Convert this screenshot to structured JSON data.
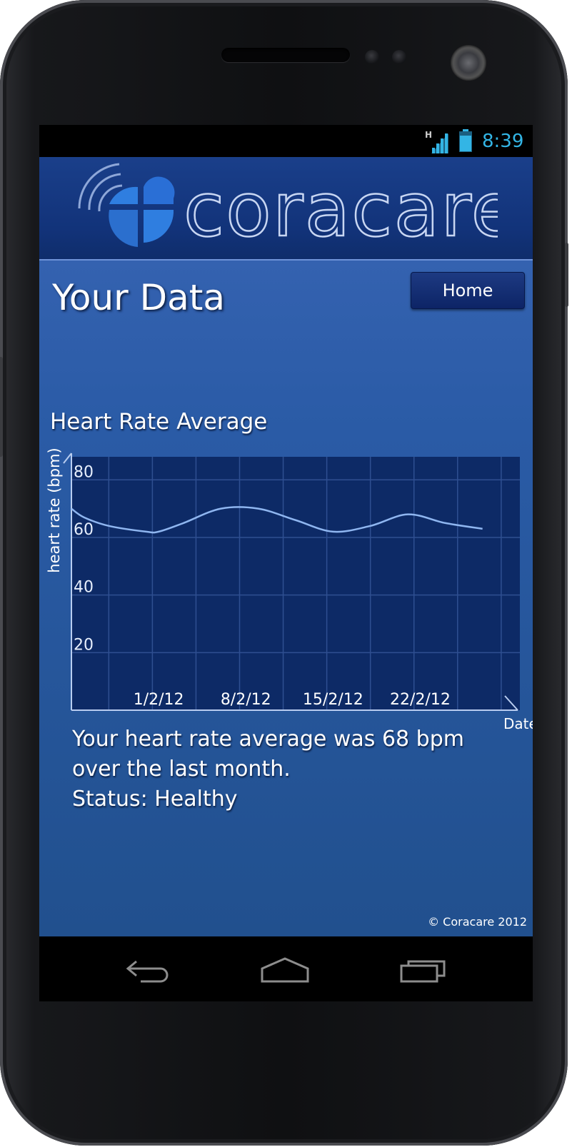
{
  "status_bar": {
    "time": "8:39",
    "network_type": "H",
    "signal_icon": "signal-icon",
    "battery_icon": "battery-icon"
  },
  "brand": {
    "name": "coracare",
    "logo_icon": "heart-cross-logo-icon"
  },
  "header": {
    "page_title": "Your Data",
    "home_label": "Home"
  },
  "chart_data": {
    "type": "line",
    "title": "Heart Rate Average",
    "ylabel": "heart rate (bpm)",
    "xlabel": "Date",
    "y_ticks": [
      80,
      60,
      40,
      20
    ],
    "ylim": [
      0,
      88
    ],
    "x_ticks": [
      "1/2/12",
      "8/2/12",
      "15/2/12",
      "22/2/12"
    ],
    "x_tick_days": [
      1,
      8,
      15,
      22
    ],
    "xlim": [
      -6,
      30
    ],
    "grid": true,
    "series": [
      {
        "x": [
          -6,
          -5,
          -3,
          0,
          1,
          3,
          6,
          9,
          12,
          15,
          18,
          21,
          24,
          27
        ],
        "y": [
          70,
          67,
          64,
          62,
          62,
          65,
          70,
          70,
          66,
          62,
          64,
          68,
          65,
          63
        ]
      }
    ]
  },
  "summary": {
    "line1": "Your heart rate average was 68 bpm",
    "line2": "over the last month.",
    "line3": "Status: Healthy"
  },
  "footer": {
    "copyright": "© Coracare 2012"
  },
  "nav": {
    "back_icon": "back-arrow-icon",
    "home_icon": "home-icon",
    "recents_icon": "recent-apps-icon"
  },
  "colors": {
    "accent": "#33b5e5",
    "chart_bg": "#0d2a66",
    "grid": "#2f4f91",
    "line": "#8fb6f0"
  }
}
